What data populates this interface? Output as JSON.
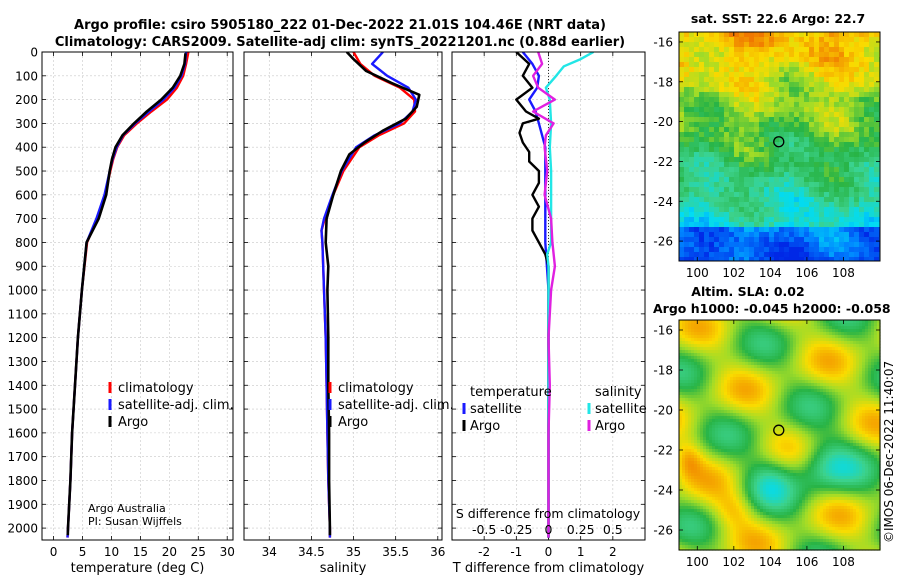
{
  "title": {
    "line1": "Argo profile: csiro 5905180_222 01-Dec-2022 21.01S 104.46E (NRT data)",
    "line2": "Climatology: CARS2009. Satellite-adj clim: synTS_20221201.nc (0.88d earlier)"
  },
  "colors": {
    "climatology": "#ff0000",
    "satellite": "#1a1aff",
    "argo": "#000000",
    "sat_s": "#22e6e6",
    "argo_s": "#e020e0"
  },
  "depth_axis": {
    "ticks": [
      0,
      100,
      200,
      300,
      400,
      500,
      600,
      700,
      800,
      900,
      1000,
      1100,
      1200,
      1300,
      1400,
      1500,
      1600,
      1700,
      1800,
      1900,
      2000
    ],
    "labels": [
      "0",
      "100",
      "200",
      "300",
      "400",
      "500",
      "600",
      "700",
      "800",
      "900",
      "1000",
      "1100",
      "1200",
      "1300",
      "1400",
      "1500",
      "1600",
      "1700",
      "1800",
      "1900",
      "2000"
    ]
  },
  "credit": {
    "line1": "Argo Australia",
    "line2": "PI: Susan Wijffels"
  },
  "timestamp": "©IMOS 06-Dec-2022 11:40:07",
  "chart_data": [
    {
      "type": "line",
      "name": "temperature-profile",
      "xlabel": "temperature (deg C)",
      "ylabel": "depth",
      "xlim": [
        -2,
        31
      ],
      "ylim": [
        2050,
        0
      ],
      "xticks": [
        0,
        5,
        10,
        15,
        20,
        25,
        30
      ],
      "xtick_labels": [
        "0",
        "5",
        "10",
        "15",
        "20",
        "25",
        "30"
      ],
      "legend": [
        "climatology",
        "satellite-adj. clim.",
        "Argo"
      ],
      "series": [
        {
          "name": "climatology",
          "depth": [
            0,
            50,
            100,
            150,
            200,
            250,
            300,
            350,
            400,
            450,
            500,
            600,
            700,
            800,
            1000,
            1200,
            1400,
            1600,
            1800,
            2000,
            2040
          ],
          "values": [
            23.3,
            22.9,
            22.4,
            21.3,
            19.6,
            16.9,
            14.4,
            12.2,
            11.0,
            10.3,
            9.8,
            8.9,
            7.5,
            5.8,
            4.9,
            4.2,
            3.7,
            3.2,
            2.9,
            2.5,
            2.4
          ]
        },
        {
          "name": "satellite-adj. clim.",
          "depth": [
            0,
            50,
            100,
            150,
            200,
            250,
            300,
            350,
            400,
            450,
            500,
            600,
            700,
            800,
            1000,
            1200,
            1400,
            1600,
            1800,
            2000,
            2040
          ],
          "values": [
            22.9,
            22.7,
            22.1,
            20.9,
            19.0,
            16.5,
            14.1,
            12.0,
            10.9,
            10.2,
            9.7,
            8.8,
            7.4,
            5.7,
            4.9,
            4.2,
            3.7,
            3.2,
            2.9,
            2.5,
            2.4
          ]
        },
        {
          "name": "Argo",
          "depth": [
            5,
            50,
            100,
            150,
            200,
            250,
            300,
            350,
            400,
            450,
            500,
            600,
            700,
            800,
            1000,
            1200,
            1400,
            1600,
            1800,
            2000,
            2030
          ],
          "values": [
            22.8,
            22.6,
            21.9,
            20.6,
            18.6,
            16.1,
            13.9,
            11.9,
            10.7,
            10.1,
            9.7,
            9.1,
            7.8,
            5.7,
            4.9,
            4.2,
            3.7,
            3.2,
            2.9,
            2.5,
            2.45
          ]
        }
      ]
    },
    {
      "type": "line",
      "name": "salinity-profile",
      "xlabel": "salinity",
      "ylabel": "depth",
      "xlim": [
        33.7,
        36.05
      ],
      "ylim": [
        2050,
        0
      ],
      "xticks": [
        34,
        34.5,
        35,
        35.5,
        36
      ],
      "xtick_labels": [
        "34",
        "34.5",
        "35",
        "35.5",
        "36"
      ],
      "legend": [
        "climatology",
        "satellite-adj. clim.",
        "Argo"
      ],
      "series": [
        {
          "name": "climatology",
          "depth": [
            0,
            50,
            100,
            150,
            200,
            250,
            300,
            350,
            400,
            500,
            600,
            700,
            750,
            800,
            900,
            1000,
            1200,
            1400,
            1600,
            1800,
            2000,
            2040
          ],
          "values": [
            35.0,
            35.08,
            35.25,
            35.55,
            35.72,
            35.73,
            35.6,
            35.3,
            35.07,
            34.88,
            34.76,
            34.66,
            34.62,
            34.63,
            34.64,
            34.65,
            34.67,
            34.68,
            34.69,
            34.7,
            34.72,
            34.72
          ]
        },
        {
          "name": "satellite-adj. clim.",
          "depth": [
            0,
            50,
            100,
            150,
            200,
            250,
            300,
            350,
            400,
            500,
            600,
            700,
            750,
            800,
            900,
            1000,
            1200,
            1400,
            1600,
            1800,
            2000,
            2040
          ],
          "values": [
            35.35,
            35.22,
            35.4,
            35.65,
            35.74,
            35.7,
            35.55,
            35.25,
            35.03,
            34.86,
            34.75,
            34.65,
            34.62,
            34.63,
            34.64,
            34.65,
            34.67,
            34.68,
            34.69,
            34.7,
            34.72,
            34.72
          ]
        },
        {
          "name": "Argo",
          "depth": [
            0,
            30,
            80,
            130,
            180,
            230,
            280,
            330,
            380,
            430,
            500,
            600,
            700,
            800,
            900,
            1000,
            1200,
            1400,
            1600,
            1800,
            2000,
            2030
          ],
          "values": [
            34.92,
            35.0,
            35.15,
            35.45,
            35.78,
            35.75,
            35.62,
            35.35,
            35.13,
            34.95,
            34.85,
            34.76,
            34.68,
            34.67,
            34.7,
            34.69,
            34.7,
            34.7,
            34.71,
            34.71,
            34.72,
            34.72
          ]
        }
      ]
    },
    {
      "type": "line",
      "name": "difference-profile",
      "xlabel": "T difference from climatology",
      "ylabel": "depth",
      "xlim": [
        -3,
        3
      ],
      "ylim": [
        2050,
        0
      ],
      "xticks": [
        -2,
        -1,
        0,
        1,
        2
      ],
      "xtick_labels": [
        "-2",
        "-1",
        "0",
        "1",
        "2"
      ],
      "top_label": "S difference from climatology",
      "s_ticks": [
        -0.5,
        -0.25,
        0,
        0.25,
        0.5
      ],
      "s_tick_labels": [
        "-0.5",
        "-0.25",
        "0",
        "0.25",
        "0.5"
      ],
      "legend_headers": [
        "temperature",
        "salinity"
      ],
      "legend": [
        "satellite",
        "Argo",
        "satellite",
        "Argo"
      ],
      "series": [
        {
          "name": "temperature satellite",
          "depth": [
            0,
            50,
            100,
            150,
            200,
            250,
            300,
            400,
            500,
            600,
            700,
            800,
            1000,
            1200,
            1400,
            1600,
            1800,
            2000,
            2040
          ],
          "values": [
            -0.8,
            -0.5,
            -0.3,
            -0.35,
            -0.6,
            -0.4,
            -0.3,
            -0.1,
            -0.1,
            -0.1,
            -0.1,
            -0.1,
            0,
            0,
            0,
            0,
            0,
            0,
            0
          ]
        },
        {
          "name": "temperature Argo",
          "depth": [
            0,
            50,
            100,
            150,
            200,
            250,
            280,
            300,
            340,
            380,
            420,
            460,
            500,
            550,
            600,
            650,
            700,
            750,
            800,
            850,
            900,
            1000,
            1200,
            1400,
            1600,
            1800,
            2000,
            2040
          ],
          "values": [
            -1.0,
            -0.6,
            -0.8,
            -0.5,
            -1.0,
            -0.7,
            -0.3,
            -0.8,
            -0.9,
            -0.8,
            -0.6,
            -0.6,
            -0.3,
            -0.3,
            -0.5,
            -0.3,
            -0.5,
            -0.5,
            -0.3,
            -0.1,
            0,
            0,
            0,
            0,
            0,
            0,
            0,
            0
          ]
        },
        {
          "name": "salinity satellite",
          "depth": [
            0,
            30,
            60,
            100,
            150,
            200,
            300,
            400,
            500,
            600,
            700,
            800,
            850,
            900,
            1000,
            1200,
            1400,
            1600,
            1800,
            2000,
            2040
          ],
          "values": [
            0.35,
            0.25,
            0.12,
            0.06,
            -0.02,
            0.01,
            0.02,
            0.01,
            0.02,
            0.02,
            0.02,
            0.02,
            -0.01,
            0,
            0,
            0,
            0,
            0,
            0,
            0,
            0
          ]
        },
        {
          "name": "salinity Argo",
          "depth": [
            0,
            50,
            100,
            150,
            200,
            250,
            300,
            350,
            400,
            500,
            600,
            700,
            800,
            900,
            1000,
            1200,
            1400,
            1600,
            1800,
            2000,
            2040
          ],
          "values": [
            -0.08,
            -0.05,
            -0.12,
            -0.08,
            0.05,
            -0.12,
            0.04,
            -0.02,
            -0.03,
            -0.01,
            -0.03,
            0.02,
            0.03,
            0.05,
            0.02,
            0,
            0.01,
            0,
            0,
            0,
            0
          ]
        }
      ]
    },
    {
      "type": "heatmap",
      "name": "sst-map",
      "title": "sat. SST: 22.6 Argo: 22.7",
      "xlim": [
        99,
        110
      ],
      "ylim": [
        -27,
        -15.5
      ],
      "xticks": [
        100,
        102,
        104,
        106,
        108
      ],
      "xtick_labels": [
        "100",
        "102",
        "104",
        "106",
        "108"
      ],
      "yticks": [
        -16,
        -18,
        -20,
        -22,
        -24,
        -26
      ],
      "ytick_labels": [
        "-16",
        "-18",
        "-20",
        "-22",
        "-24",
        "-26"
      ],
      "argo_position": [
        104.46,
        -21.01
      ]
    },
    {
      "type": "heatmap",
      "name": "sla-map",
      "title": "Altim. SLA: 0.02",
      "subtitle": "Argo h1000: -0.045 h2000: -0.058",
      "xlim": [
        99,
        110
      ],
      "ylim": [
        -27,
        -15.5
      ],
      "xticks": [
        100,
        102,
        104,
        106,
        108
      ],
      "xtick_labels": [
        "100",
        "102",
        "104",
        "106",
        "108"
      ],
      "yticks": [
        -16,
        -18,
        -20,
        -22,
        -24,
        -26
      ],
      "ytick_labels": [
        "-16",
        "-18",
        "-20",
        "-22",
        "-24",
        "-26"
      ],
      "argo_position": [
        104.46,
        -21.01
      ]
    }
  ]
}
